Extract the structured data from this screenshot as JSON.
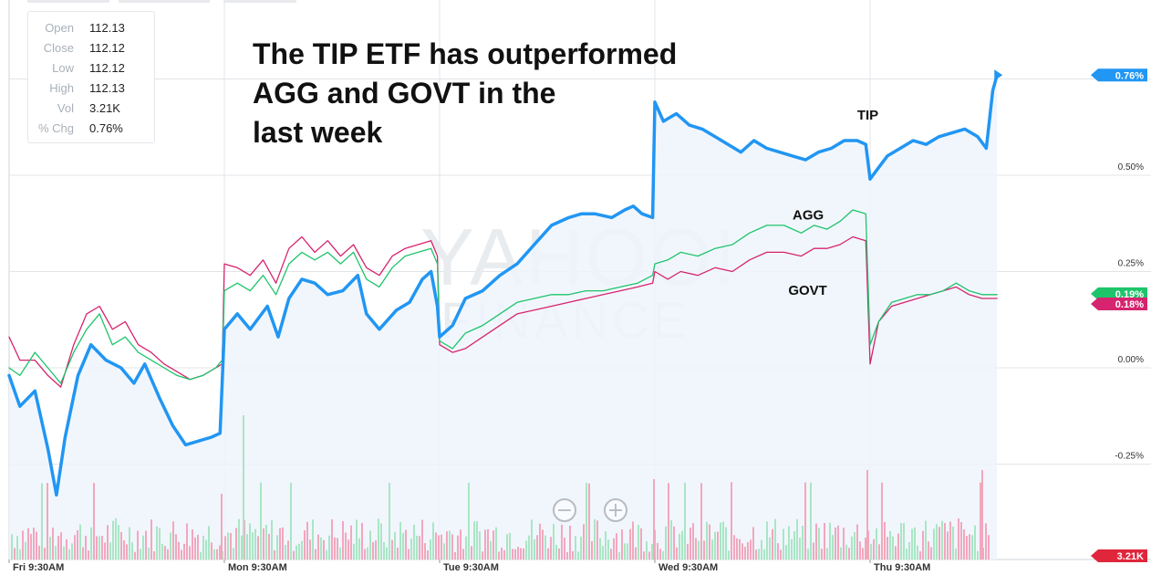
{
  "ohlc_box": {
    "rows": [
      {
        "label": "Open",
        "value": "112.13"
      },
      {
        "label": "Close",
        "value": "112.12"
      },
      {
        "label": "Low",
        "value": "112.12"
      },
      {
        "label": "High",
        "value": "112.13"
      },
      {
        "label": "Vol",
        "value": "3.21K"
      },
      {
        "label": "% Chg",
        "value": "0.76%"
      }
    ]
  },
  "headline": {
    "line1": "The TIP ETF has outperformed",
    "line2": "AGG and GOVT in the",
    "line3": "last week"
  },
  "watermark": {
    "line1": "YAHOO!",
    "line2": "FINANCE"
  },
  "zoom": {
    "out_symbol": "−",
    "in_symbol": "+"
  },
  "colors": {
    "TIP": "#2196f3",
    "AGG": "#1ec46a",
    "GOVT": "#d6246e",
    "grid": "#e1e4e8",
    "volume_up": "#a9e6c4",
    "volume_down": "#f2a7bd",
    "area_fill": "#eef5fd"
  },
  "chart_data": {
    "type": "line",
    "ylabel_unit": "%",
    "y_ticks": [
      {
        "value": 0.5,
        "label": "0.50%"
      },
      {
        "value": 0.25,
        "label": "0.25%"
      },
      {
        "value": 0.0,
        "label": "0.00%"
      },
      {
        "value": -0.25,
        "label": "-0.25%"
      }
    ],
    "ylim": [
      -0.5,
      0.9
    ],
    "x_sessions": [
      "Fri 9:30AM",
      "Mon 9:30AM",
      "Tue 9:30AM",
      "Wed 9:30AM",
      "Thu 9:30AM"
    ],
    "xlim": [
      0,
      4.6
    ],
    "grid": true,
    "volume_label": "3.21K",
    "series": [
      {
        "name": "TIP",
        "end_label": "0.76%",
        "points": [
          [
            0.0,
            -0.02
          ],
          [
            0.05,
            -0.1
          ],
          [
            0.12,
            -0.06
          ],
          [
            0.18,
            -0.21
          ],
          [
            0.22,
            -0.33
          ],
          [
            0.26,
            -0.18
          ],
          [
            0.32,
            -0.02
          ],
          [
            0.38,
            0.06
          ],
          [
            0.45,
            0.02
          ],
          [
            0.52,
            0.0
          ],
          [
            0.58,
            -0.04
          ],
          [
            0.63,
            0.01
          ],
          [
            0.7,
            -0.08
          ],
          [
            0.76,
            -0.15
          ],
          [
            0.82,
            -0.2
          ],
          [
            0.88,
            -0.19
          ],
          [
            0.94,
            -0.18
          ],
          [
            0.98,
            -0.17
          ],
          [
            1.0,
            0.1
          ],
          [
            1.06,
            0.14
          ],
          [
            1.12,
            0.1
          ],
          [
            1.2,
            0.16
          ],
          [
            1.25,
            0.08
          ],
          [
            1.3,
            0.18
          ],
          [
            1.36,
            0.23
          ],
          [
            1.42,
            0.22
          ],
          [
            1.48,
            0.19
          ],
          [
            1.55,
            0.2
          ],
          [
            1.62,
            0.24
          ],
          [
            1.66,
            0.14
          ],
          [
            1.72,
            0.1
          ],
          [
            1.8,
            0.15
          ],
          [
            1.86,
            0.17
          ],
          [
            1.92,
            0.23
          ],
          [
            1.96,
            0.25
          ],
          [
            1.99,
            0.16
          ],
          [
            2.0,
            0.08
          ],
          [
            2.06,
            0.11
          ],
          [
            2.12,
            0.18
          ],
          [
            2.2,
            0.2
          ],
          [
            2.28,
            0.24
          ],
          [
            2.36,
            0.27
          ],
          [
            2.44,
            0.32
          ],
          [
            2.52,
            0.37
          ],
          [
            2.6,
            0.39
          ],
          [
            2.66,
            0.4
          ],
          [
            2.72,
            0.4
          ],
          [
            2.8,
            0.39
          ],
          [
            2.86,
            0.41
          ],
          [
            2.9,
            0.42
          ],
          [
            2.94,
            0.4
          ],
          [
            2.99,
            0.39
          ],
          [
            3.0,
            0.69
          ],
          [
            3.04,
            0.64
          ],
          [
            3.1,
            0.66
          ],
          [
            3.16,
            0.63
          ],
          [
            3.22,
            0.62
          ],
          [
            3.28,
            0.6
          ],
          [
            3.34,
            0.58
          ],
          [
            3.4,
            0.56
          ],
          [
            3.46,
            0.59
          ],
          [
            3.52,
            0.57
          ],
          [
            3.58,
            0.56
          ],
          [
            3.64,
            0.55
          ],
          [
            3.7,
            0.54
          ],
          [
            3.76,
            0.56
          ],
          [
            3.82,
            0.57
          ],
          [
            3.88,
            0.59
          ],
          [
            3.94,
            0.59
          ],
          [
            3.98,
            0.58
          ],
          [
            4.0,
            0.49
          ],
          [
            4.04,
            0.52
          ],
          [
            4.08,
            0.55
          ],
          [
            4.14,
            0.57
          ],
          [
            4.2,
            0.59
          ],
          [
            4.26,
            0.58
          ],
          [
            4.32,
            0.6
          ],
          [
            4.38,
            0.61
          ],
          [
            4.44,
            0.62
          ],
          [
            4.5,
            0.6
          ],
          [
            4.54,
            0.57
          ],
          [
            4.57,
            0.72
          ],
          [
            4.59,
            0.76
          ]
        ]
      },
      {
        "name": "AGG",
        "end_label": "0.19%",
        "points": [
          [
            0.0,
            0.0
          ],
          [
            0.05,
            -0.02
          ],
          [
            0.12,
            0.04
          ],
          [
            0.18,
            0.0
          ],
          [
            0.24,
            -0.04
          ],
          [
            0.3,
            0.04
          ],
          [
            0.36,
            0.1
          ],
          [
            0.42,
            0.14
          ],
          [
            0.48,
            0.06
          ],
          [
            0.54,
            0.08
          ],
          [
            0.6,
            0.04
          ],
          [
            0.66,
            0.02
          ],
          [
            0.72,
            0.0
          ],
          [
            0.78,
            -0.02
          ],
          [
            0.84,
            -0.03
          ],
          [
            0.9,
            -0.02
          ],
          [
            0.96,
            0.0
          ],
          [
            0.99,
            0.02
          ],
          [
            1.0,
            0.2
          ],
          [
            1.06,
            0.22
          ],
          [
            1.12,
            0.2
          ],
          [
            1.18,
            0.24
          ],
          [
            1.24,
            0.19
          ],
          [
            1.3,
            0.27
          ],
          [
            1.36,
            0.3
          ],
          [
            1.42,
            0.28
          ],
          [
            1.48,
            0.3
          ],
          [
            1.54,
            0.27
          ],
          [
            1.6,
            0.3
          ],
          [
            1.66,
            0.23
          ],
          [
            1.72,
            0.21
          ],
          [
            1.78,
            0.26
          ],
          [
            1.84,
            0.29
          ],
          [
            1.9,
            0.3
          ],
          [
            1.96,
            0.31
          ],
          [
            1.99,
            0.27
          ],
          [
            2.0,
            0.07
          ],
          [
            2.06,
            0.05
          ],
          [
            2.12,
            0.09
          ],
          [
            2.2,
            0.11
          ],
          [
            2.28,
            0.14
          ],
          [
            2.36,
            0.17
          ],
          [
            2.44,
            0.18
          ],
          [
            2.52,
            0.19
          ],
          [
            2.6,
            0.19
          ],
          [
            2.68,
            0.2
          ],
          [
            2.76,
            0.2
          ],
          [
            2.84,
            0.21
          ],
          [
            2.92,
            0.22
          ],
          [
            2.99,
            0.24
          ],
          [
            3.0,
            0.27
          ],
          [
            3.06,
            0.28
          ],
          [
            3.12,
            0.3
          ],
          [
            3.2,
            0.29
          ],
          [
            3.28,
            0.31
          ],
          [
            3.36,
            0.32
          ],
          [
            3.44,
            0.35
          ],
          [
            3.52,
            0.37
          ],
          [
            3.6,
            0.37
          ],
          [
            3.68,
            0.35
          ],
          [
            3.74,
            0.37
          ],
          [
            3.8,
            0.36
          ],
          [
            3.86,
            0.38
          ],
          [
            3.92,
            0.41
          ],
          [
            3.98,
            0.4
          ],
          [
            4.0,
            0.06
          ],
          [
            4.04,
            0.12
          ],
          [
            4.1,
            0.17
          ],
          [
            4.16,
            0.18
          ],
          [
            4.22,
            0.19
          ],
          [
            4.28,
            0.19
          ],
          [
            4.34,
            0.2
          ],
          [
            4.4,
            0.22
          ],
          [
            4.46,
            0.2
          ],
          [
            4.52,
            0.19
          ],
          [
            4.56,
            0.19
          ],
          [
            4.59,
            0.19
          ]
        ]
      },
      {
        "name": "GOVT",
        "end_label": "0.18%",
        "points": [
          [
            0.0,
            0.08
          ],
          [
            0.05,
            0.02
          ],
          [
            0.12,
            0.02
          ],
          [
            0.18,
            -0.02
          ],
          [
            0.24,
            -0.05
          ],
          [
            0.3,
            0.06
          ],
          [
            0.36,
            0.14
          ],
          [
            0.42,
            0.16
          ],
          [
            0.48,
            0.1
          ],
          [
            0.54,
            0.12
          ],
          [
            0.6,
            0.06
          ],
          [
            0.66,
            0.04
          ],
          [
            0.72,
            0.01
          ],
          [
            0.78,
            -0.01
          ],
          [
            0.84,
            -0.03
          ],
          [
            0.9,
            -0.02
          ],
          [
            0.96,
            0.0
          ],
          [
            0.99,
            0.01
          ],
          [
            1.0,
            0.27
          ],
          [
            1.06,
            0.26
          ],
          [
            1.12,
            0.24
          ],
          [
            1.18,
            0.28
          ],
          [
            1.24,
            0.22
          ],
          [
            1.3,
            0.31
          ],
          [
            1.36,
            0.34
          ],
          [
            1.42,
            0.3
          ],
          [
            1.48,
            0.33
          ],
          [
            1.54,
            0.29
          ],
          [
            1.6,
            0.32
          ],
          [
            1.66,
            0.26
          ],
          [
            1.72,
            0.24
          ],
          [
            1.78,
            0.29
          ],
          [
            1.84,
            0.31
          ],
          [
            1.9,
            0.32
          ],
          [
            1.96,
            0.33
          ],
          [
            1.99,
            0.29
          ],
          [
            2.0,
            0.06
          ],
          [
            2.06,
            0.04
          ],
          [
            2.12,
            0.05
          ],
          [
            2.2,
            0.08
          ],
          [
            2.28,
            0.11
          ],
          [
            2.36,
            0.14
          ],
          [
            2.44,
            0.15
          ],
          [
            2.52,
            0.16
          ],
          [
            2.6,
            0.17
          ],
          [
            2.68,
            0.18
          ],
          [
            2.76,
            0.19
          ],
          [
            2.84,
            0.2
          ],
          [
            2.92,
            0.21
          ],
          [
            2.99,
            0.22
          ],
          [
            3.0,
            0.25
          ],
          [
            3.06,
            0.23
          ],
          [
            3.12,
            0.25
          ],
          [
            3.2,
            0.24
          ],
          [
            3.28,
            0.26
          ],
          [
            3.36,
            0.25
          ],
          [
            3.44,
            0.28
          ],
          [
            3.52,
            0.3
          ],
          [
            3.6,
            0.3
          ],
          [
            3.68,
            0.29
          ],
          [
            3.74,
            0.31
          ],
          [
            3.8,
            0.31
          ],
          [
            3.86,
            0.32
          ],
          [
            3.92,
            0.34
          ],
          [
            3.98,
            0.33
          ],
          [
            4.0,
            0.01
          ],
          [
            4.04,
            0.12
          ],
          [
            4.1,
            0.16
          ],
          [
            4.16,
            0.17
          ],
          [
            4.22,
            0.18
          ],
          [
            4.28,
            0.19
          ],
          [
            4.34,
            0.2
          ],
          [
            4.4,
            0.21
          ],
          [
            4.46,
            0.19
          ],
          [
            4.52,
            0.18
          ],
          [
            4.56,
            0.18
          ],
          [
            4.59,
            0.18
          ]
        ]
      }
    ]
  }
}
